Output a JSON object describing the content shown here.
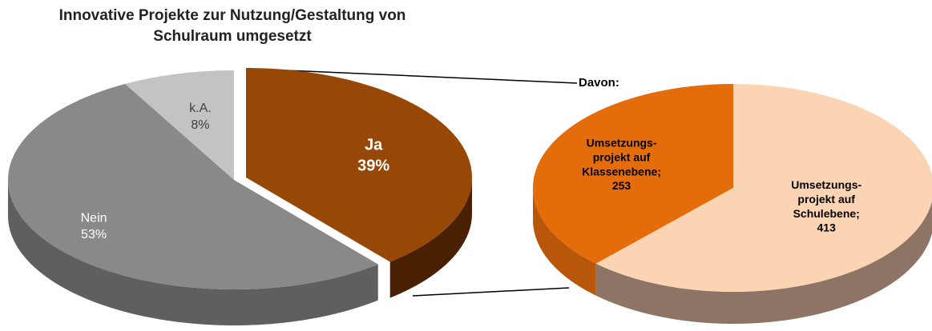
{
  "chart_data": [
    {
      "type": "pie",
      "title": "Innovative Projekte zur Nutzung/Gestaltung von\nSchulraum umgesetzt",
      "categories": [
        "Ja",
        "Nein",
        "k.A."
      ],
      "values": [
        39,
        53,
        8
      ],
      "value_labels": [
        "39%",
        "53%",
        "8%"
      ],
      "colors": [
        "#974706",
        "#898989",
        "#c3c3c3"
      ],
      "side_colors": [
        "#4a2003",
        "#5f5f5f",
        "#545454"
      ],
      "label_colors": [
        "#ffffff",
        "#ffffff",
        "#404040"
      ]
    },
    {
      "type": "pie",
      "annotation": "Davon:",
      "categories": [
        "Umsetzungs-\nprojekt auf\nKlassenebene;",
        "Umsetzungs-\nprojekt auf\nSchulebene;"
      ],
      "values": [
        253,
        413
      ],
      "colors": [
        "#e46c0a",
        "#fbd4b4"
      ],
      "side_colors": [
        "#b8560a",
        "#8e7464"
      ],
      "label_colors": [
        "#000000",
        "#000000"
      ]
    }
  ]
}
